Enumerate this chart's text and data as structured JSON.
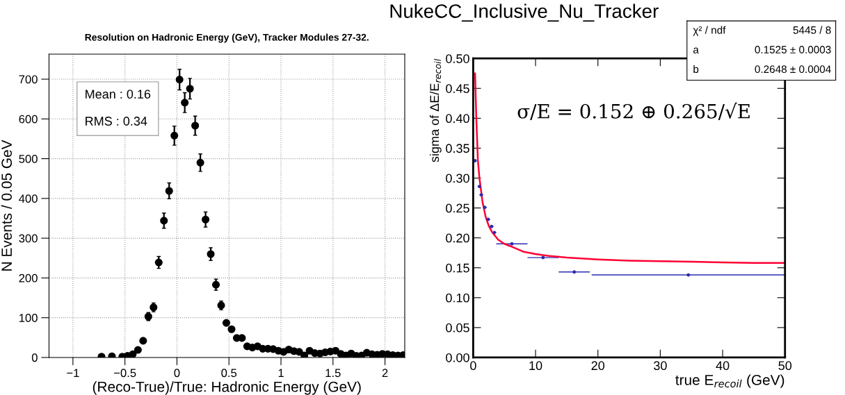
{
  "chart_data": [
    {
      "type": "scatter",
      "title": "Resolution on Hadronic Energy (GeV), Tracker Modules 27-32.",
      "xlabel": "(Reco-True)/True: Hadronic Energy (GeV)",
      "ylabel": "N Events / 0.05 GeV",
      "series": [
        {
          "color": "#000000",
          "x": [
            -0.725,
            -0.625,
            -0.525,
            -0.475,
            -0.425,
            -0.375,
            -0.325,
            -0.275,
            -0.225,
            -0.175,
            -0.125,
            -0.075,
            -0.025,
            0.025,
            0.075,
            0.125,
            0.175,
            0.225,
            0.275,
            0.325,
            0.375,
            0.425,
            0.475,
            0.525,
            0.575,
            0.625,
            0.675,
            0.725,
            0.775,
            0.825,
            0.875,
            0.925,
            0.975,
            1.025,
            1.075,
            1.125,
            1.175,
            1.225,
            1.275,
            1.325,
            1.375,
            1.425,
            1.475,
            1.525,
            1.575,
            1.625,
            1.675,
            1.725,
            1.775,
            1.825,
            1.875,
            1.925,
            1.975,
            2.025,
            2.075,
            2.125,
            2.175
          ],
          "values": [
            2,
            3,
            2,
            4,
            8,
            19,
            42,
            103,
            126,
            239,
            344,
            419,
            558,
            699,
            641,
            676,
            583,
            490,
            347,
            260,
            183,
            131,
            87,
            71,
            49,
            49,
            28,
            25,
            28,
            22,
            22,
            21,
            17,
            14,
            20,
            16,
            14,
            5,
            17,
            11,
            10,
            13,
            15,
            17,
            9,
            5,
            10,
            4,
            5,
            12,
            8,
            7,
            9,
            8,
            6,
            5,
            6
          ],
          "errors": [
            null,
            null,
            null,
            null,
            null,
            null,
            null,
            10,
            11,
            15,
            19,
            20,
            24,
            26,
            25,
            26,
            24,
            22,
            19,
            16,
            14,
            11,
            null,
            null,
            null,
            null,
            null,
            null,
            null,
            null,
            null,
            null,
            null,
            null,
            null,
            null,
            null,
            null,
            null,
            null,
            null,
            null,
            null,
            null,
            null,
            null,
            null,
            null,
            null,
            null,
            null,
            null,
            null,
            null,
            null,
            null,
            null
          ]
        }
      ],
      "marker": "circle",
      "xlim": [
        -1.23,
        2.19
      ],
      "ylim": [
        0,
        763
      ],
      "xticks": [
        {
          "value": -1,
          "label": "−1"
        },
        {
          "value": -0.5,
          "label": "−0.5"
        },
        0,
        0.5,
        1,
        1.5,
        2
      ],
      "yticks": [
        0,
        100,
        200,
        300,
        400,
        500,
        600,
        700
      ],
      "grid": true,
      "annotations": [
        "Mean : 0.16",
        "RMS : 0.34"
      ]
    },
    {
      "type": "scatter",
      "title": "NukeCC_Inclusive_Nu_Tracker",
      "xlabel": "true E$_{recoil}$ (GeV)",
      "ylabel": "sigma of ΔE/E$_{recoil}$",
      "series": [
        {
          "color": "#2b2bb0",
          "marker": "circle",
          "x": [
            0.3,
            1.0,
            1.3,
            1.85,
            2.4,
            2.95,
            3.4,
            6.2,
            11.2,
            16.2,
            34.5
          ],
          "values": [
            0.329,
            0.286,
            0.272,
            0.251,
            0.231,
            0.219,
            0.209,
            0.19,
            0.167,
            0.143,
            0.138
          ],
          "xerrors": [
            0.2,
            0.3,
            0.3,
            0.3,
            0.3,
            0.3,
            0.3,
            2.5,
            2.5,
            2.5,
            15.5
          ]
        },
        {
          "type": "line",
          "color": "#ff0033",
          "marker": "none",
          "x": [
            0.3,
            0.5,
            0.75,
            1,
            1.5,
            2,
            2.5,
            3,
            4,
            5,
            6,
            8,
            10,
            12,
            15,
            20,
            25,
            30,
            35,
            40,
            45,
            50
          ],
          "values": [
            0.475,
            0.4,
            0.33,
            0.3,
            0.26,
            0.235,
            0.22,
            0.21,
            0.197,
            0.19,
            0.186,
            0.177,
            0.173,
            0.17,
            0.167,
            0.164,
            0.162,
            0.161,
            0.16,
            0.159,
            0.158,
            0.158
          ]
        }
      ],
      "xlim": [
        0,
        50
      ],
      "ylim": [
        0,
        0.5
      ],
      "xticks": [
        0,
        10,
        20,
        30,
        40,
        50
      ],
      "yticks": [
        {
          "value": 0,
          "label": "0.00"
        },
        {
          "value": 0.05,
          "label": "0.05"
        },
        {
          "value": 0.1,
          "label": "0.10"
        },
        {
          "value": 0.15,
          "label": "0.15"
        },
        {
          "value": 0.2,
          "label": "0.20"
        },
        {
          "value": 0.25,
          "label": "0.25"
        },
        {
          "value": 0.3,
          "label": "0.30"
        },
        {
          "value": 0.35,
          "label": "0.35"
        },
        {
          "value": 0.4,
          "label": "0.40"
        },
        {
          "value": 0.45,
          "label": "0.45"
        },
        {
          "value": 0.5,
          "label": "0.50"
        }
      ],
      "grid": false,
      "annotations": [
        "σ/E = 0.152 ⊕ 0.265/√E",
        "χ² / ndf",
        "5445 / 8",
        "a",
        "0.1525 ± 0.0003",
        "b",
        "0.2648 ± 0.0004"
      ]
    }
  ]
}
